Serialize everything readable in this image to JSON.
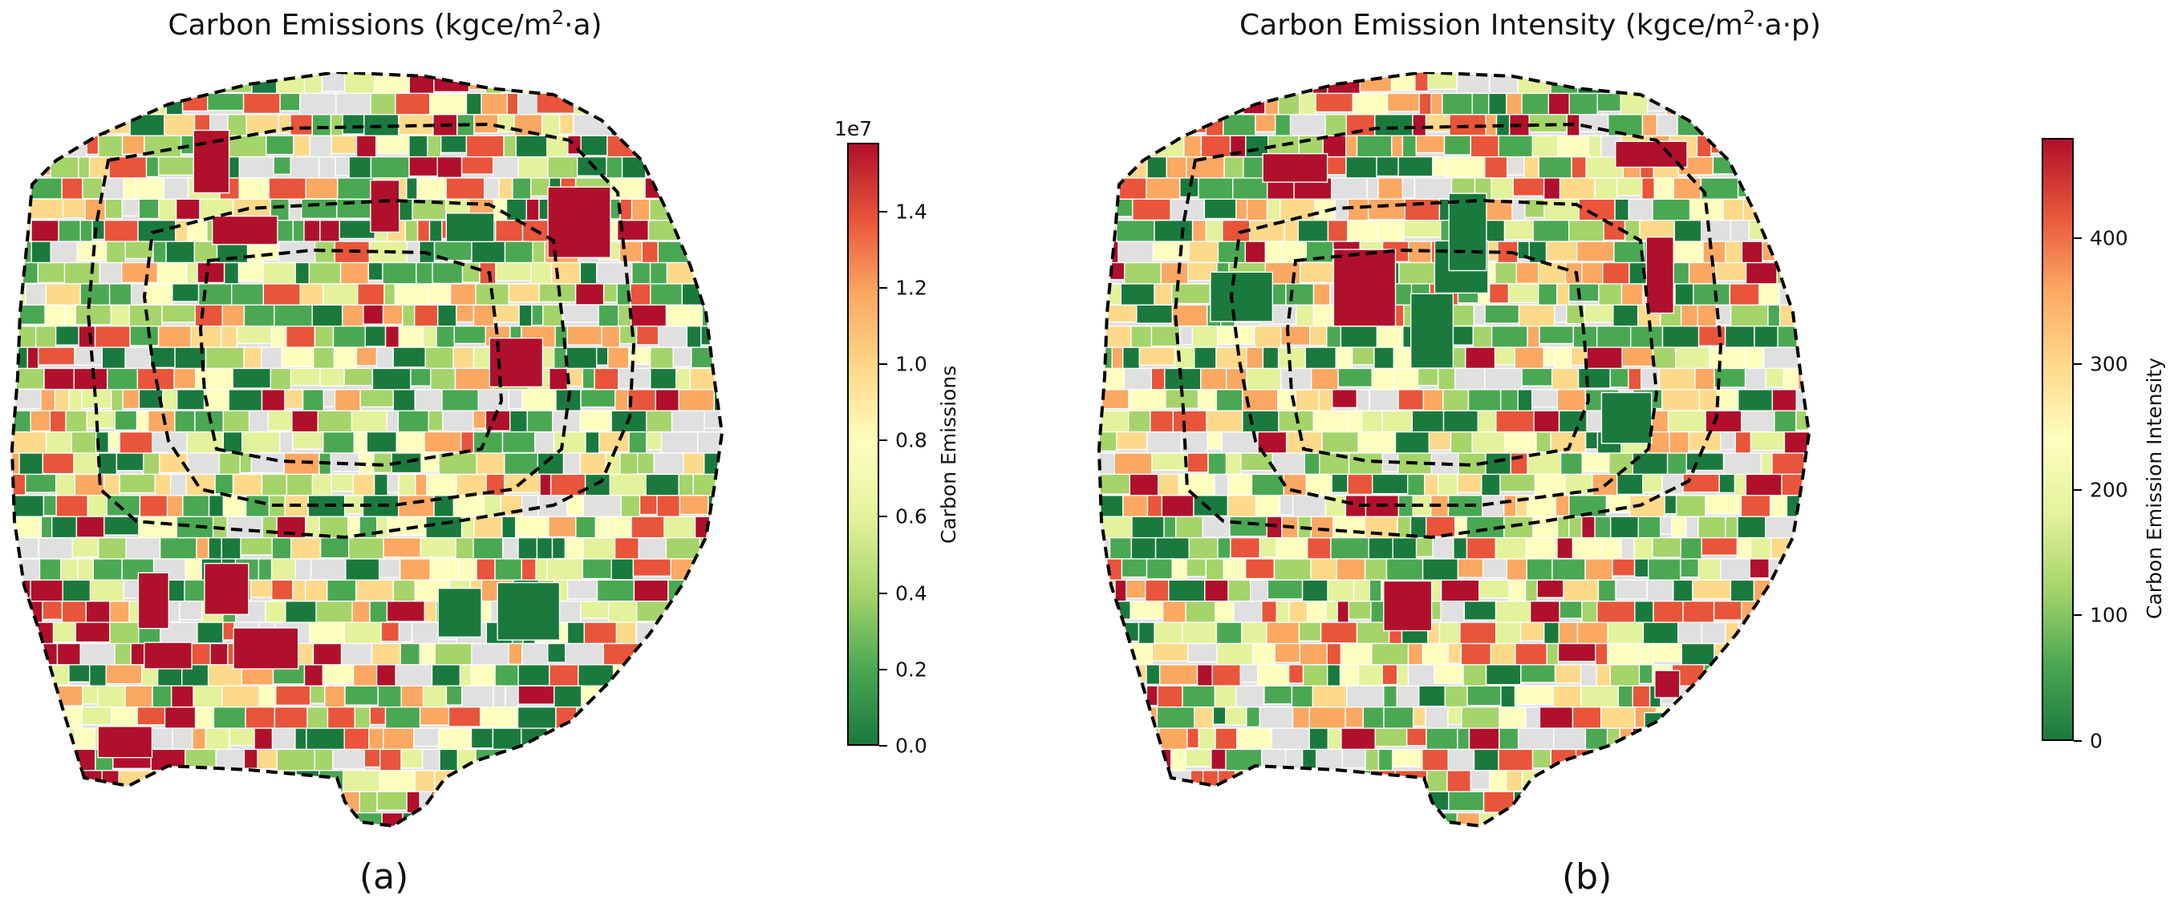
{
  "figure": {
    "panels": [
      {
        "id": "a",
        "title_main": "Carbon Emissions (kgce/m",
        "title_sup": "2",
        "title_tail": "·a)",
        "caption": "(a)",
        "colorbar": {
          "label": "Carbon Emissions",
          "exponent": "1e7",
          "ticks": [
            "0.0",
            "0.2",
            "0.4",
            "0.6",
            "0.8",
            "1.0",
            "1.2",
            "1.4"
          ],
          "tick_values": [
            0.0,
            0.2,
            0.4,
            0.6,
            0.8,
            1.0,
            1.2,
            1.4
          ],
          "range": [
            0.0,
            1.58
          ]
        },
        "legend_text": []
      },
      {
        "id": "b",
        "title_main": "Carbon Emission Intensity (kgce/m",
        "title_sup": "2",
        "title_tail": "·a·p)",
        "caption": "(b)",
        "colorbar": {
          "label": "Carbon Emission Intensity",
          "exponent": "",
          "ticks": [
            "0",
            "100",
            "200",
            "300",
            "400"
          ],
          "tick_values": [
            0,
            100,
            200,
            300,
            400
          ],
          "range": [
            0,
            480
          ]
        },
        "legend_text": []
      }
    ],
    "colormap": [
      "#1a7a3e",
      "#4aa853",
      "#a5d46a",
      "#e3f29b",
      "#fefebe",
      "#fdd98a",
      "#fba862",
      "#e8553a",
      "#b0102b"
    ],
    "colors": {
      "no_data": "#e0e0e0",
      "road": "#ffffff",
      "ring_road": "#000000",
      "map_background": "#ffffff"
    }
  }
}
